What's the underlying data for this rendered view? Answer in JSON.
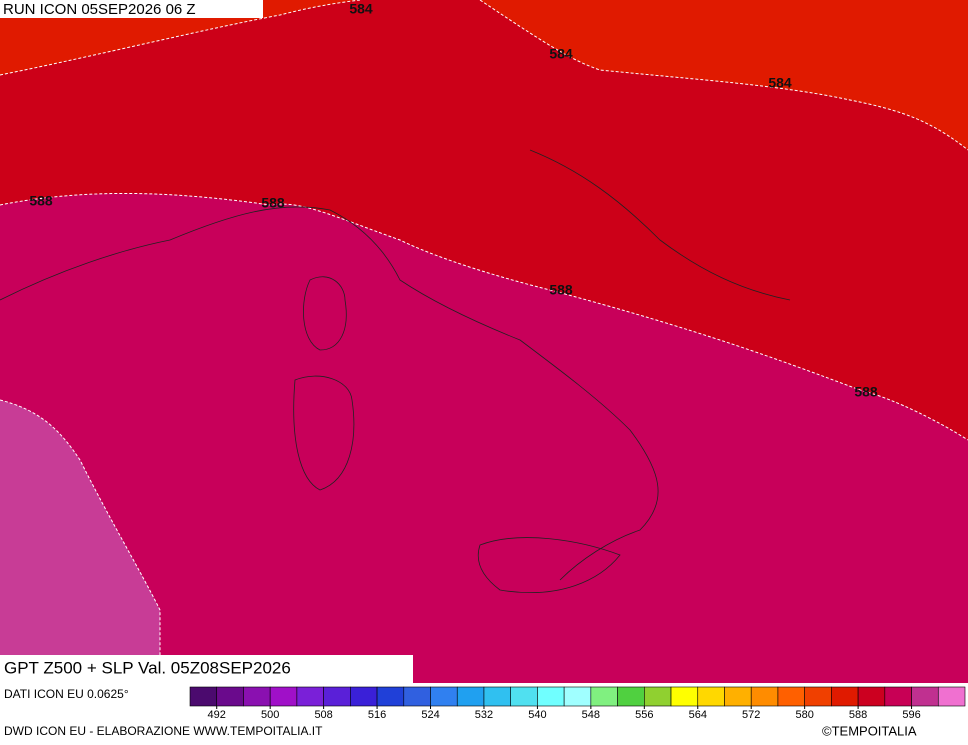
{
  "header": {
    "title": "RUN ICON 05SEP2026 06 Z"
  },
  "map": {
    "product": "GPT Z500 + SLP Val. 05Z08SEP2026",
    "contour_labels": [
      584,
      584,
      584,
      588,
      588,
      588,
      588
    ]
  },
  "colorbar": {
    "range": [
      488,
      604
    ],
    "ticks": [
      492,
      500,
      508,
      516,
      524,
      532,
      540,
      548,
      556,
      564,
      572,
      580,
      588,
      596
    ],
    "colors": [
      "#4b0a6e",
      "#6a0a8c",
      "#8a10b0",
      "#a010c8",
      "#7a20d8",
      "#5a20d8",
      "#3a20d8",
      "#2040d8",
      "#3060e0",
      "#3080f0",
      "#20a0f0",
      "#30c0f0",
      "#50e0f0",
      "#70ffff",
      "#a0ffff",
      "#80f080",
      "#50d040",
      "#90d030",
      "#ffff00",
      "#ffd800",
      "#ffb000",
      "#ff8c00",
      "#ff6000",
      "#f04000",
      "#e01a00",
      "#cc0020",
      "#c80055",
      "#c03090",
      "#f070d0"
    ]
  },
  "footer": {
    "source": "DATI ICON EU 0.0625°",
    "credit": "DWD ICON EU - ELABORAZIONE WWW.TEMPOITALIA.IT",
    "copyright": "©TEMPOITALIA"
  }
}
